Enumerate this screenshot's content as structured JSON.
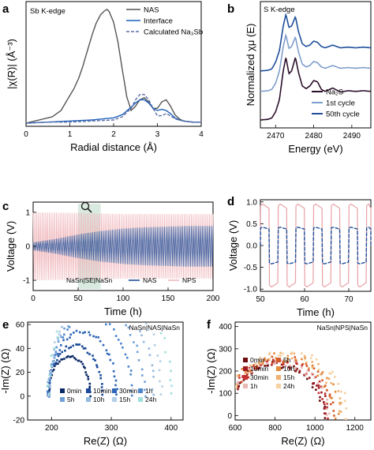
{
  "chart_data": [
    {
      "id": "a",
      "panel_label": "a",
      "type": "line",
      "annotation": "Sb K-edge",
      "xlabel": "Radial distance (Å)",
      "ylabel": "|χ(R)| (Å⁻³)",
      "xlim": [
        0,
        4
      ],
      "xticks": [
        "0",
        "1",
        "2",
        "3",
        "4"
      ],
      "legend": [
        "NAS",
        "Interface",
        "Calculated Na₃Sb"
      ],
      "legend_position": "top-right",
      "series": [
        {
          "name": "NAS",
          "color": "#555555",
          "x": [
            0,
            0.2,
            0.4,
            0.6,
            0.8,
            1.0,
            1.1,
            1.2,
            1.3,
            1.4,
            1.5,
            1.6,
            1.7,
            1.8,
            1.85,
            1.9,
            2.0,
            2.1,
            2.2,
            2.3,
            2.4,
            2.5,
            2.6,
            2.7,
            2.8,
            2.9,
            3.0,
            3.1,
            3.2,
            3.3,
            3.4,
            3.5,
            3.6,
            3.8,
            4.0
          ],
          "y": [
            0,
            0.02,
            0.04,
            0.06,
            0.12,
            0.26,
            0.33,
            0.42,
            0.54,
            0.68,
            0.82,
            0.94,
            1.02,
            1.06,
            1.07,
            1.05,
            0.95,
            0.76,
            0.5,
            0.25,
            0.12,
            0.16,
            0.22,
            0.24,
            0.2,
            0.14,
            0.14,
            0.2,
            0.22,
            0.16,
            0.08,
            0.04,
            0.02,
            0.01,
            0.01
          ]
        },
        {
          "name": "Interface",
          "color": "#1f5fb8",
          "x": [
            0,
            0.5,
            1.0,
            1.5,
            2.0,
            2.2,
            2.4,
            2.5,
            2.6,
            2.7,
            2.8,
            2.9,
            3.0,
            3.1,
            3.2,
            3.3,
            3.4,
            3.5,
            3.6,
            3.8,
            4.0
          ],
          "y": [
            0,
            0.01,
            0.02,
            0.03,
            0.05,
            0.08,
            0.15,
            0.19,
            0.22,
            0.22,
            0.19,
            0.14,
            0.12,
            0.13,
            0.12,
            0.09,
            0.05,
            0.03,
            0.02,
            0.01,
            0.01
          ]
        },
        {
          "name": "Calculated Na₃Sb",
          "color": "#5a6fa8",
          "dashed": true,
          "x": [
            0,
            0.5,
            1.0,
            1.5,
            2.0,
            2.2,
            2.4,
            2.5,
            2.6,
            2.7,
            2.8,
            2.9,
            3.0,
            3.1,
            3.2,
            3.3,
            3.4,
            3.6,
            3.8,
            4.0
          ],
          "y": [
            0,
            0.01,
            0.01,
            0.02,
            0.03,
            0.06,
            0.14,
            0.22,
            0.27,
            0.27,
            0.22,
            0.14,
            0.07,
            0.07,
            0.09,
            0.07,
            0.04,
            0.02,
            0.01,
            0.01
          ]
        }
      ]
    },
    {
      "id": "b",
      "panel_label": "b",
      "type": "line",
      "annotation": "S K-edge",
      "xlabel": "Energy (eV)",
      "ylabel": "Normalized χμ (E)",
      "xlim": [
        2466,
        2495
      ],
      "xticks": [
        "2470",
        "2480",
        "2490"
      ],
      "legend": [
        "Na₂S",
        "1st cycle",
        "50th cycle"
      ],
      "legend_position": "bottom-right",
      "series": [
        {
          "name": "Na₂S",
          "color": "#2b0f2a",
          "x": [
            2466,
            2468,
            2469,
            2470,
            2471,
            2472,
            2472.7,
            2473.5,
            2474.2,
            2475.2,
            2476,
            2477,
            2478,
            2479,
            2480,
            2481,
            2482,
            2483,
            2485,
            2487,
            2489,
            2491,
            2493,
            2495
          ],
          "y": [
            0,
            0.01,
            0.03,
            0.12,
            0.3,
            0.72,
            0.92,
            0.68,
            0.72,
            0.92,
            0.7,
            0.5,
            0.46,
            0.5,
            0.58,
            0.56,
            0.45,
            0.42,
            0.47,
            0.41,
            0.43,
            0.42,
            0.43,
            0.42
          ]
        },
        {
          "name": "1st cycle",
          "color": "#7f9ecb",
          "x": [
            2466,
            2468,
            2469,
            2470,
            2471,
            2472,
            2472.7,
            2473.5,
            2474.2,
            2475.2,
            2476,
            2477,
            2478,
            2479,
            2480,
            2481,
            2482,
            2483,
            2485,
            2487,
            2489,
            2491,
            2493,
            2495
          ],
          "y": [
            0.42,
            0.43,
            0.45,
            0.54,
            0.72,
            1.08,
            1.25,
            1.05,
            1.08,
            1.22,
            1.0,
            0.82,
            0.78,
            0.8,
            0.86,
            0.84,
            0.78,
            0.76,
            0.8,
            0.76,
            0.77,
            0.76,
            0.77,
            0.76
          ]
        },
        {
          "name": "50th cycle",
          "color": "#1f4f9a",
          "x": [
            2466,
            2468,
            2469,
            2470,
            2471,
            2472,
            2472.7,
            2473.5,
            2474.2,
            2475.2,
            2476,
            2477,
            2478,
            2479,
            2480,
            2481,
            2482,
            2483,
            2485,
            2487,
            2489,
            2491,
            2493,
            2495
          ],
          "y": [
            0.72,
            0.73,
            0.75,
            0.85,
            1.02,
            1.38,
            1.55,
            1.36,
            1.38,
            1.52,
            1.3,
            1.12,
            1.08,
            1.1,
            1.16,
            1.14,
            1.08,
            1.06,
            1.1,
            1.06,
            1.07,
            1.06,
            1.07,
            1.06
          ]
        }
      ]
    },
    {
      "id": "c",
      "panel_label": "c",
      "type": "line",
      "xlabel": "Time (h)",
      "ylabel": "Voltage (V)",
      "xlim": [
        0,
        200
      ],
      "ylim": [
        -1.3,
        1.3
      ],
      "xticks": [
        "0",
        "50",
        "100",
        "150",
        "200"
      ],
      "yticks": [
        "-1",
        "0",
        "1"
      ],
      "legend_title": "NaSn|SE|NaSn",
      "legend": [
        "NAS",
        "NPS"
      ],
      "legend_position": "bottom",
      "highlight_window_h": [
        50,
        75
      ],
      "series": [
        {
          "name": "NAS",
          "color": "#1f4f9a",
          "envelope_time_h": [
            0,
            25,
            50,
            75,
            100,
            125,
            150,
            175,
            200
          ],
          "envelope_amplitude_v": [
            0.12,
            0.22,
            0.35,
            0.45,
            0.52,
            0.56,
            0.58,
            0.6,
            0.6
          ]
        },
        {
          "name": "NPS",
          "color": "#f0b8bc",
          "envelope_time_h": [
            0,
            50,
            100,
            150,
            200
          ],
          "envelope_amplitude_v": [
            1.0,
            0.98,
            0.95,
            0.95,
            0.95
          ]
        }
      ]
    },
    {
      "id": "d",
      "panel_label": "d",
      "type": "line",
      "xlabel": "Time (h)",
      "ylabel": "Voltage (V)",
      "xlim": [
        50,
        75
      ],
      "ylim": [
        -1.05,
        1.05
      ],
      "xticks": [
        "50",
        "60",
        "70"
      ],
      "yticks": [
        "-1.0",
        "-0.5",
        "0.0",
        "0.5",
        "1.0"
      ],
      "series": [
        {
          "name": "NPS",
          "color": "#e8a0a6",
          "plateau_v": 0.95,
          "period_h": 2
        },
        {
          "name": "NAS",
          "color": "#1f4f9a",
          "plateau_v": 0.42,
          "period_h": 2
        }
      ]
    },
    {
      "id": "e",
      "panel_label": "e",
      "type": "scatter",
      "annotation": "NaSn|NAS|NaSn",
      "xlabel": "Re(Z) (Ω)",
      "ylabel": "-Im(Z) (Ω)",
      "xlim": [
        160,
        420
      ],
      "ylim": [
        -20,
        62
      ],
      "xticks": [
        "200",
        "300",
        "400"
      ],
      "yticks": [
        "-20",
        "0",
        "20",
        "40",
        "60"
      ],
      "series": [
        {
          "name": "0min",
          "color": "#0a2a66",
          "center": 230,
          "radius": 35
        },
        {
          "name": "10min",
          "color": "#1a4a99",
          "center": 240,
          "radius": 45
        },
        {
          "name": "30min",
          "color": "#2e66b8",
          "center": 252,
          "radius": 57
        },
        {
          "name": "1h",
          "color": "#4b86cc",
          "center": 265,
          "radius": 70
        },
        {
          "name": "5h",
          "color": "#6f9fd6",
          "center": 275,
          "radius": 80
        },
        {
          "name": "10h",
          "color": "#93b8df",
          "center": 283,
          "radius": 88
        },
        {
          "name": "15h",
          "color": "#b3cfe7",
          "center": 290,
          "radius": 95
        },
        {
          "name": "24h",
          "color": "#9fe0dc",
          "center": 298,
          "radius": 103
        }
      ]
    },
    {
      "id": "f",
      "panel_label": "f",
      "type": "scatter",
      "annotation": "NaSn|NPS|NaSn",
      "xlabel": "Re(Z) (Ω)",
      "ylabel": "-Im(Z) (Ω)",
      "xlim": [
        600,
        1280
      ],
      "ylim": [
        -20,
        420
      ],
      "xticks": [
        "600",
        "800",
        "1000",
        "1200"
      ],
      "yticks": [
        "0",
        "100",
        "200",
        "300",
        "400"
      ],
      "series": [
        {
          "name": "0min",
          "color": "#6e0e12",
          "center": 800,
          "radius": 240
        },
        {
          "name": "10min",
          "color": "#a01a20",
          "center": 805,
          "radius": 245
        },
        {
          "name": "30min",
          "color": "#c53030",
          "center": 810,
          "radius": 250
        },
        {
          "name": "1h",
          "color": "#e8b8b4",
          "center": 815,
          "radius": 255
        },
        {
          "name": "5h",
          "color": "#d35a2a",
          "center": 825,
          "radius": 265
        },
        {
          "name": "10h",
          "color": "#e58a3a",
          "center": 835,
          "radius": 275
        },
        {
          "name": "15h",
          "color": "#f0b070",
          "center": 845,
          "radius": 285
        },
        {
          "name": "24h",
          "color": "#f6d2a0",
          "center": 855,
          "radius": 295
        }
      ]
    }
  ]
}
